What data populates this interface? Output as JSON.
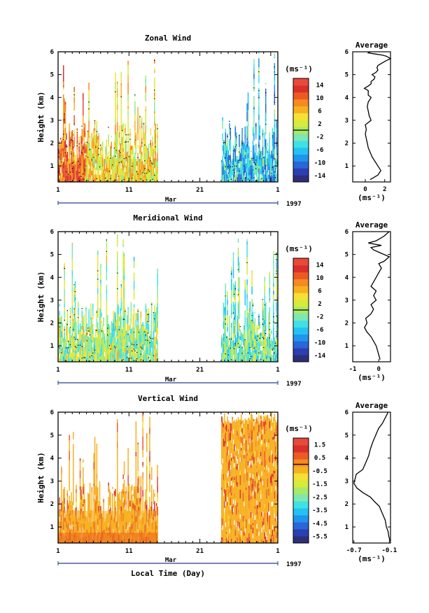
{
  "figure": {
    "xlabel": "Local Time (Day)"
  },
  "colors": {
    "vertical_wind_fill": "#f7b020",
    "vertical_wind_low_layer": "#e85018",
    "frame": "#000000",
    "timeline": "#2a3a8c"
  },
  "chart_data": [
    {
      "type": "heatmap",
      "title": "Zonal Wind",
      "ylabel": "Height (km)",
      "ylim": [
        0.3,
        6.0
      ],
      "yticks": [
        "1",
        "2",
        "3",
        "4",
        "5",
        "6"
      ],
      "xticks": [
        "1",
        "11",
        "21",
        "1"
      ],
      "xlim_days": [
        1,
        32
      ],
      "month_label": "Mar",
      "year_label": "1997",
      "data_gaps_days": [
        [
          15,
          24
        ]
      ],
      "colorbar": {
        "unit": "(ms⁻¹)",
        "ticks": [
          "14",
          "10",
          "6",
          "2",
          "-2",
          "-6",
          "-10",
          "-14"
        ],
        "range": [
          -16,
          16
        ]
      },
      "segments": [
        {
          "days": [
            1,
            5
          ],
          "dominant_value": 10
        },
        {
          "days": [
            5,
            15
          ],
          "dominant_value": 4
        },
        {
          "days": [
            24,
            32
          ],
          "dominant_value": -6
        }
      ]
    },
    {
      "type": "line",
      "title": "Average",
      "xlabel": "(ms⁻¹)",
      "ylabel": "",
      "xlim": [
        -1.3,
        2.6
      ],
      "ylim": [
        0.3,
        6.0
      ],
      "xticks": [
        "0",
        "2"
      ],
      "yticks": [
        "1",
        "2",
        "3",
        "4",
        "5",
        "6"
      ],
      "x": [
        0.5,
        1.3,
        1.6,
        1.3,
        1.0,
        0.7,
        0.5,
        0.3,
        0.2,
        0.1,
        0.0,
        0.1,
        0.0,
        0.6,
        0.4,
        0.3,
        0.2,
        0.3,
        0.6,
        0.3,
        0.3,
        -0.1,
        0.3,
        0.6,
        0.6,
        0.9,
        1.0,
        0.7,
        1.1,
        1.3,
        1.2,
        1.3,
        1.7,
        2.1,
        2.6,
        2.2,
        1.8,
        1.1,
        0.3,
        0.5
      ],
      "y": [
        0.4,
        0.6,
        0.8,
        1.0,
        1.2,
        1.4,
        1.6,
        1.8,
        2.0,
        2.2,
        2.4,
        2.6,
        2.8,
        3.0,
        3.2,
        3.4,
        3.6,
        3.8,
        4.0,
        4.1,
        4.3,
        4.4,
        4.5,
        4.6,
        4.7,
        4.8,
        4.9,
        5.0,
        5.1,
        5.2,
        5.3,
        5.4,
        5.5,
        5.6,
        5.7,
        5.8,
        5.85,
        5.9,
        5.95,
        6.0
      ]
    },
    {
      "type": "heatmap",
      "title": "Meridional Wind",
      "ylabel": "Height (km)",
      "ylim": [
        0.3,
        6.0
      ],
      "yticks": [
        "1",
        "2",
        "3",
        "4",
        "5",
        "6"
      ],
      "xticks": [
        "1",
        "11",
        "21",
        "1"
      ],
      "xlim_days": [
        1,
        32
      ],
      "month_label": "Mar",
      "year_label": "1997",
      "data_gaps_days": [
        [
          15,
          24
        ]
      ],
      "colorbar": {
        "unit": "(ms⁻¹)",
        "ticks": [
          "14",
          "10",
          "6",
          "2",
          "-2",
          "-6",
          "-10",
          "-14"
        ],
        "range": [
          -16,
          16
        ]
      },
      "segments": [
        {
          "days": [
            1,
            15
          ],
          "dominant_value": 0
        },
        {
          "days": [
            24,
            32
          ],
          "dominant_value": -2
        }
      ]
    },
    {
      "type": "line",
      "title": "Average",
      "xlabel": "(ms⁻¹)",
      "ylabel": "",
      "xlim": [
        -1.0,
        0.45
      ],
      "ylim": [
        0.3,
        6.0
      ],
      "xticks": [
        "-1",
        "0"
      ],
      "yticks": [
        "1",
        "2",
        "3",
        "4",
        "5",
        "6"
      ],
      "x": [
        0.05,
        0.0,
        -0.05,
        -0.1,
        -0.2,
        -0.3,
        -0.45,
        -0.55,
        -0.45,
        -0.5,
        -0.3,
        -0.2,
        -0.3,
        -0.1,
        -0.2,
        -0.1,
        -0.3,
        -0.2,
        -0.1,
        0.0,
        0.1,
        0.0,
        0.2,
        0.3,
        0.4,
        0.2,
        0.0,
        -0.2,
        -0.3,
        0.1,
        -0.4,
        -0.1,
        0.2,
        0.4
      ],
      "y": [
        0.4,
        0.6,
        0.8,
        1.0,
        1.2,
        1.4,
        1.6,
        1.8,
        2.0,
        2.2,
        2.4,
        2.6,
        2.8,
        3.0,
        3.2,
        3.4,
        3.6,
        3.8,
        4.0,
        4.2,
        4.4,
        4.6,
        4.7,
        4.8,
        4.9,
        5.0,
        5.1,
        5.2,
        5.3,
        5.4,
        5.5,
        5.6,
        5.8,
        6.0
      ]
    },
    {
      "type": "heatmap",
      "title": "Vertical Wind",
      "ylabel": "Height (km)",
      "ylim": [
        0.3,
        6.0
      ],
      "yticks": [
        "1",
        "2",
        "3",
        "4",
        "5",
        "6"
      ],
      "xticks": [
        "1",
        "11",
        "21",
        "1"
      ],
      "xlim_days": [
        1,
        32
      ],
      "month_label": "Mar",
      "year_label": "1997",
      "data_gaps_days": [
        [
          15,
          24
        ]
      ],
      "colorbar": {
        "unit": "(ms⁻¹)",
        "ticks": [
          "1.5",
          "0.5",
          "-0.5",
          "-1.5",
          "-2.5",
          "-3.5",
          "-4.5",
          "-5.5"
        ],
        "range": [
          -6,
          2
        ]
      },
      "segments": [
        {
          "days": [
            1,
            15
          ],
          "dominant_value": 0.3
        },
        {
          "days": [
            24,
            32
          ],
          "dominant_value": 0.4
        }
      ]
    },
    {
      "type": "line",
      "title": "Average",
      "xlabel": "(ms⁻¹)",
      "ylabel": "",
      "xlim": [
        -0.72,
        -0.08
      ],
      "ylim": [
        0.3,
        6.0
      ],
      "xticks": [
        "-0.7",
        "-0.1"
      ],
      "yticks": [
        "1",
        "2",
        "3",
        "4",
        "5",
        "6"
      ],
      "x": [
        -0.09,
        -0.11,
        -0.12,
        -0.15,
        -0.17,
        -0.22,
        -0.27,
        -0.35,
        -0.42,
        -0.55,
        -0.65,
        -0.7,
        -0.68,
        -0.66,
        -0.55,
        -0.5,
        -0.45,
        -0.42,
        -0.38,
        -0.33,
        -0.28,
        -0.22,
        -0.18,
        -0.15,
        -0.12
      ],
      "y": [
        0.4,
        0.6,
        0.8,
        1.0,
        1.3,
        1.6,
        1.9,
        2.1,
        2.3,
        2.5,
        2.7,
        2.9,
        3.1,
        3.3,
        3.5,
        3.8,
        4.1,
        4.4,
        4.7,
        5.0,
        5.3,
        5.5,
        5.7,
        5.85,
        6.0
      ]
    }
  ]
}
